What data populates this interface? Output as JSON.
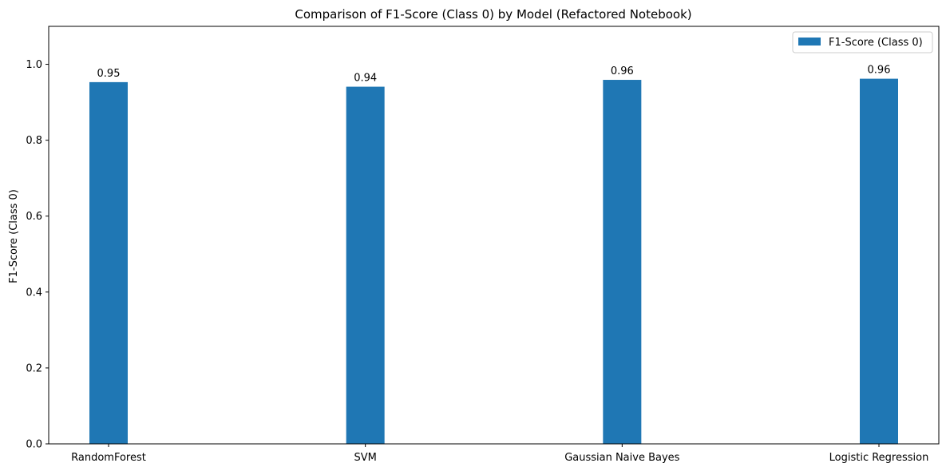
{
  "chart_data": {
    "type": "bar",
    "title": "Comparison of F1-Score (Class 0) by Model (Refactored Notebook)",
    "xlabel": "",
    "ylabel": "F1-Score (Class 0)",
    "categories": [
      "RandomForest",
      "SVM",
      "Gaussian Naive Bayes",
      "Logistic Regression"
    ],
    "series": [
      {
        "name": "F1-Score (Class 0)",
        "values": [
          0.953,
          0.941,
          0.959,
          0.962
        ],
        "data_labels": [
          "0.95",
          "0.94",
          "0.96",
          "0.96"
        ],
        "color": "#1f77b4"
      }
    ],
    "ylim": [
      0,
      1.1
    ],
    "yticks": [
      0.0,
      0.2,
      0.4,
      0.6,
      0.8,
      1.0
    ],
    "ytick_labels": [
      "0.0",
      "0.2",
      "0.4",
      "0.6",
      "0.8",
      "1.0"
    ],
    "grid": false,
    "legend_position": "top-right"
  }
}
